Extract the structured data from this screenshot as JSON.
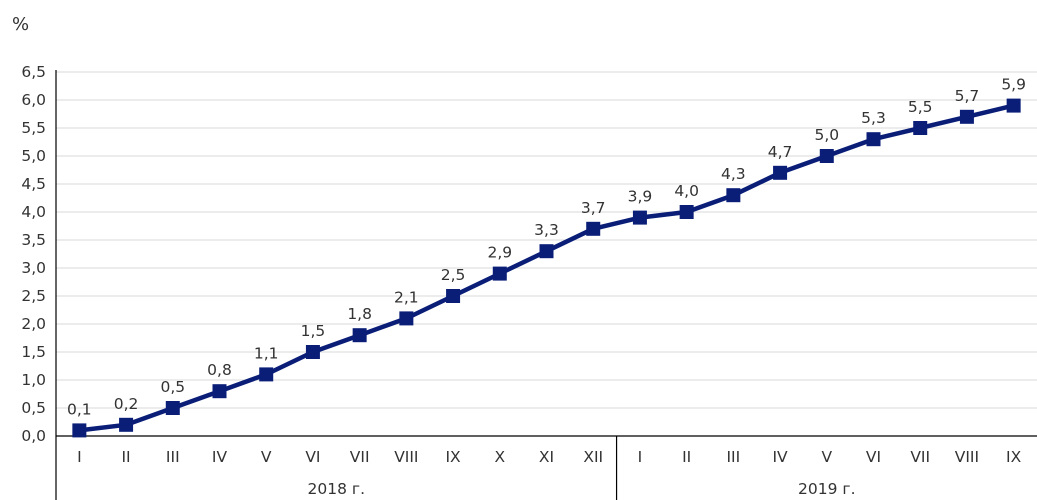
{
  "chart_data": {
    "type": "line",
    "title": "",
    "ylabel": "%",
    "xlabel": "",
    "ylim": [
      0,
      6.5
    ],
    "y_ticks": [
      "0,0",
      "0,5",
      "1,0",
      "1,5",
      "2,0",
      "2,5",
      "3,0",
      "3,5",
      "4,0",
      "4,5",
      "5,0",
      "5,5",
      "6,0",
      "6,5"
    ],
    "grid": true,
    "legend": "none",
    "line_color": "#0a1e78",
    "categories": [
      "I",
      "II",
      "III",
      "IV",
      "V",
      "VI",
      "VII",
      "VIII",
      "IX",
      "X",
      "XI",
      "XII",
      "I",
      "II",
      "III",
      "IV",
      "V",
      "VI",
      "VII",
      "VIII",
      "IX"
    ],
    "groups": [
      {
        "label": "2018 г.",
        "count": 12
      },
      {
        "label": "2019 г.",
        "count": 9
      }
    ],
    "series": [
      {
        "values": [
          0.1,
          0.2,
          0.5,
          0.8,
          1.1,
          1.5,
          1.8,
          2.1,
          2.5,
          2.9,
          3.3,
          3.7,
          3.9,
          4.0,
          4.3,
          4.7,
          5.0,
          5.3,
          5.5,
          5.7,
          5.9
        ],
        "value_labels": [
          "0,1",
          "0,2",
          "0,5",
          "0,8",
          "1,1",
          "1,5",
          "1,8",
          "2,1",
          "2,5",
          "2,9",
          "3,3",
          "3,7",
          "3,9",
          "4,0",
          "4,3",
          "4,7",
          "5,0",
          "5,3",
          "5,5",
          "5,7",
          "5,9"
        ]
      }
    ]
  }
}
